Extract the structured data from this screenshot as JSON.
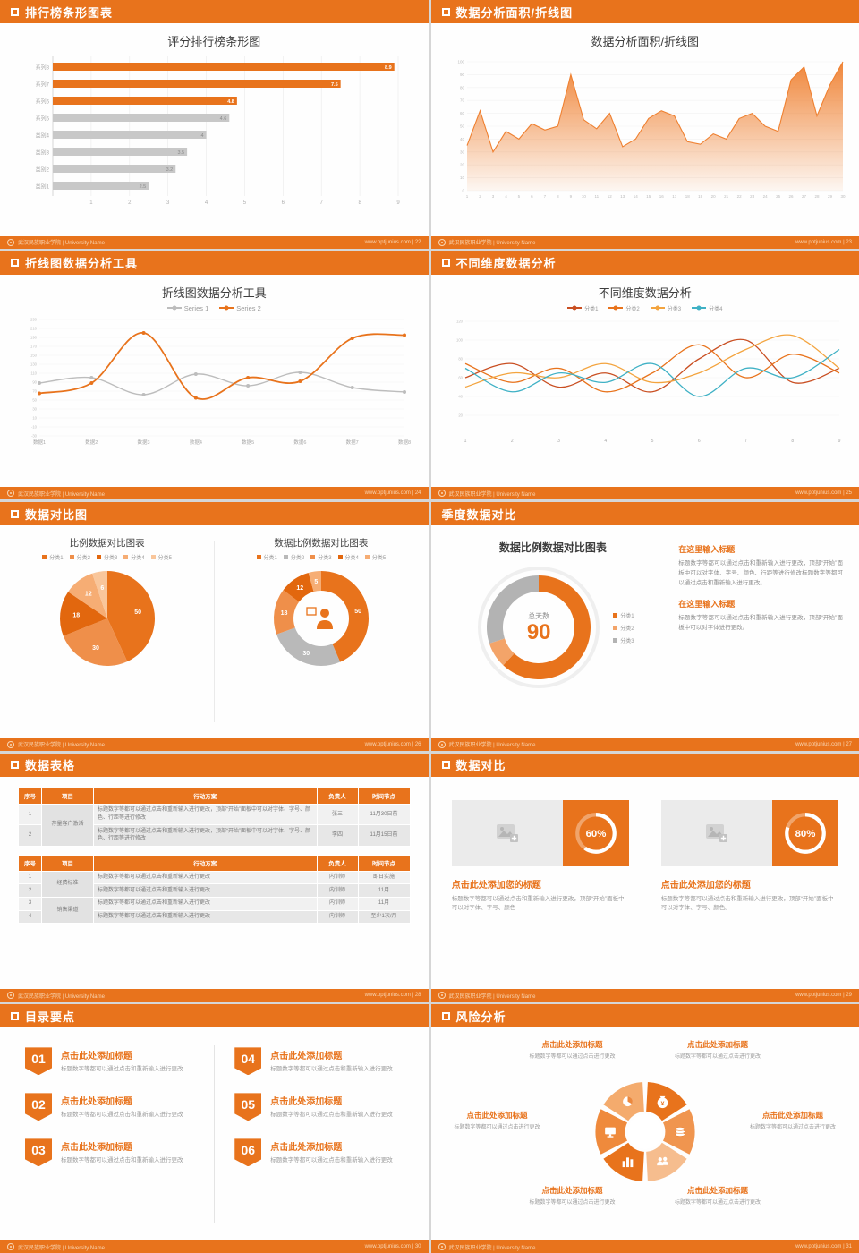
{
  "accent": "#e8731c",
  "footer": {
    "university": "武汉民族职业学院 | University Name",
    "site": "www.pptjunius.com"
  },
  "slides": {
    "s1": {
      "header": "排行榜条形图表",
      "page": "22",
      "footer_right": "www.pptjunius.com | 22",
      "title": "评分排行榜条形图",
      "chart_data": {
        "type": "bar",
        "orientation": "horizontal",
        "title": "评分排行榜条形图",
        "categories": [
          "系列8",
          "系列7",
          "系列6",
          "系列5",
          "类别4",
          "类别3",
          "类别2",
          "类别1"
        ],
        "values": [
          8.9,
          7.5,
          4.8,
          4.6,
          4,
          3.5,
          3.2,
          2.5
        ],
        "bar_colors": [
          "#e8731c",
          "#e8731c",
          "#e8731c",
          "#c8c8c8",
          "#c8c8c8",
          "#c8c8c8",
          "#c8c8c8",
          "#c8c8c8"
        ],
        "xlim": [
          0,
          9
        ],
        "xticks": [
          1,
          2,
          3,
          4,
          5,
          6,
          7,
          8,
          9
        ],
        "grid": true
      }
    },
    "s2": {
      "header": "数据分析面积/折线图",
      "page": "23",
      "footer_right": "www.pptjunius.com | 23",
      "title": "数据分析面积/折线图",
      "chart_data": {
        "type": "area",
        "title": "数据分析面积/折线图",
        "color": "#ef8030",
        "x": [
          1,
          2,
          3,
          4,
          5,
          6,
          7,
          8,
          9,
          10,
          11,
          12,
          13,
          14,
          15,
          16,
          17,
          18,
          19,
          20,
          21,
          22,
          23,
          24,
          25,
          26,
          27,
          28,
          29,
          30
        ],
        "values": [
          35,
          62,
          30,
          46,
          40,
          52,
          47,
          50,
          90,
          55,
          48,
          60,
          34,
          40,
          56,
          62,
          58,
          38,
          36,
          44,
          40,
          56,
          60,
          50,
          46,
          86,
          96,
          58,
          82,
          100
        ],
        "ylim": [
          0,
          100
        ],
        "yticks": [
          0,
          10,
          20,
          30,
          40,
          50,
          60,
          70,
          80,
          90,
          100
        ],
        "grid": true
      }
    },
    "s3": {
      "header": "折线图数据分析工具",
      "page": "24",
      "footer_right": "www.pptjunius.com | 24",
      "title": "折线图数据分析工具",
      "chart_data": {
        "type": "line",
        "title": "折线图数据分析工具",
        "x": [
          "数据1",
          "数据2",
          "数据3",
          "数据4",
          "数据5",
          "数据6",
          "数据7",
          "数据8"
        ],
        "ylim": [
          -30,
          230
        ],
        "yticks": [
          -30,
          -10,
          10,
          30,
          50,
          70,
          90,
          110,
          130,
          150,
          170,
          190,
          210,
          230
        ],
        "series": [
          {
            "name": "Series 1",
            "color": "#bdbdbd",
            "width": 1.4,
            "dots": true,
            "values": [
              88,
              100,
              62,
              108,
              82,
              112,
              78,
              68
            ]
          },
          {
            "name": "Series 2",
            "color": "#e8731c",
            "width": 1.8,
            "dots": true,
            "values": [
              65,
              88,
              200,
              55,
              100,
              92,
              188,
              195
            ]
          }
        ],
        "legend_position": "top",
        "grid": true
      }
    },
    "s4": {
      "header": "不同维度数据分析",
      "page": "25",
      "footer_right": "www.pptjunius.com | 25",
      "title": "不同维度数据分析",
      "chart_data": {
        "type": "line",
        "title": "不同维度数据分析",
        "x": [
          1,
          2,
          3,
          4,
          5,
          6,
          7,
          8,
          9
        ],
        "ylim": [
          0,
          120
        ],
        "yticks": [
          20,
          40,
          60,
          80,
          100,
          120
        ],
        "series": [
          {
            "name": "分类1",
            "color": "#c94f22",
            "width": 1.3,
            "dots": false,
            "values": [
              60,
              75,
              50,
              65,
              45,
              80,
              100,
              55,
              70
            ]
          },
          {
            "name": "分类2",
            "color": "#e8731c",
            "width": 1.3,
            "dots": false,
            "values": [
              75,
              55,
              70,
              45,
              65,
              95,
              60,
              85,
              65
            ]
          },
          {
            "name": "分类3",
            "color": "#f3a43f",
            "width": 1.3,
            "dots": false,
            "values": [
              50,
              65,
              60,
              75,
              55,
              65,
              90,
              105,
              70
            ]
          },
          {
            "name": "分类4",
            "color": "#3fb1c5",
            "width": 1.3,
            "dots": false,
            "values": [
              70,
              45,
              65,
              55,
              75,
              40,
              70,
              60,
              90
            ]
          }
        ],
        "legend_position": "top",
        "grid": true
      }
    },
    "s5": {
      "header": "数据对比图",
      "page": "26",
      "footer_right": "www.pptjunius.com | 26",
      "left": {
        "title": "比例数据对比图表",
        "chart_data": {
          "type": "pie",
          "title": "比例数据对比图表",
          "labels": [
            "分类1",
            "分类2",
            "分类3",
            "分类4",
            "分类5"
          ],
          "values": [
            50,
            30,
            18,
            12,
            6
          ],
          "colors": [
            "#e8731c",
            "#ef8f4a",
            "#e2670e",
            "#f6ad74",
            "#f9c69b"
          ]
        }
      },
      "right": {
        "title": "数据比例数据对比图表",
        "chart_data": {
          "type": "donut",
          "title": "数据比例数据对比图表",
          "labels": [
            "分类1",
            "分类2",
            "分类3",
            "分类4",
            "分类5"
          ],
          "values": [
            50,
            30,
            18,
            12,
            5
          ],
          "colors": [
            "#e8731c",
            "#b9b9b9",
            "#ef8f4a",
            "#e2670e",
            "#f6ad74"
          ]
        }
      }
    },
    "s6": {
      "header": "季度数据对比",
      "page": "27",
      "footer_right": "www.pptjunius.com | 27",
      "title": "数据比例数据对比图表",
      "chart_data": {
        "type": "donut",
        "title": "数据比例数据对比图表",
        "labels": [
          "分类1",
          "分类2",
          "分类3"
        ],
        "values": [
          62,
          8,
          30
        ],
        "colors": [
          "#e8731c",
          "#f3a469",
          "#b3b3b3"
        ],
        "center_label": "总天数",
        "center_value": "90"
      },
      "blocks": [
        {
          "heading": "在这里输入标题",
          "body": "标题数字等都可以通过点击和重新输入进行更改，顶部“开始”面板中可以对字体、字号、颜色、行距等进行修改标题数字等都可以通过点击和重新输入进行更改。"
        },
        {
          "heading": "在这里输入标题",
          "body": "标题数字等都可以通过点击和重新输入进行更改，顶部“开始”面板中可以对字体进行更改。"
        }
      ]
    },
    "s7": {
      "header": "数据表格",
      "page": "28",
      "footer_right": "www.pptjunius.com | 28",
      "table1": {
        "headers": [
          "序号",
          "项目",
          "行动方案",
          "负责人",
          "时间节点"
        ],
        "project": "存量客户激活",
        "rows": [
          {
            "no": "1",
            "action": "标题数字等都可以通过点击和重新输入进行更改，顶部“开始”面板中可以对字体、字号、颜色、行距等进行修改",
            "owner": "张三",
            "time": "11月30日前"
          },
          {
            "no": "2",
            "action": "标题数字等都可以通过点击和重新输入进行更改，顶部“开始”面板中可以对字体、字号、颜色、行距等进行修改",
            "owner": "李四",
            "time": "11月15日前"
          }
        ]
      },
      "table2": {
        "headers": [
          "序号",
          "项目",
          "行动方案",
          "负责人",
          "时间节点"
        ],
        "projects": [
          "经费标准",
          "销售渠道"
        ],
        "rows": [
          {
            "no": "1",
            "action": "标题数字等都可以通过点击和重新输入进行更改",
            "owner": "内训师",
            "time": "即日实施"
          },
          {
            "no": "2",
            "action": "标题数字等都可以通过点击和重新输入进行更改",
            "owner": "内训师",
            "time": "11月"
          },
          {
            "no": "3",
            "action": "标题数字等都可以通过点击和重新输入进行更改",
            "owner": "内训师",
            "time": "11月"
          },
          {
            "no": "4",
            "action": "标题数字等都可以通过点击和重新输入进行更改",
            "owner": "内训师",
            "time": "至少1次/月"
          }
        ]
      }
    },
    "s8": {
      "header": "数据对比",
      "page": "29",
      "footer_right": "www.pptjunius.com | 29",
      "cards": [
        {
          "value": 60,
          "percent": "60%",
          "title": "点击此处添加您的标题",
          "body": "标题数字等都可以通过点击和重新输入进行更改，顶部“开始”面板中可以对字体、字号、颜色"
        },
        {
          "value": 80,
          "percent": "80%",
          "title": "点击此处添加您的标题",
          "body": "标题数字等都可以通过点击和重新输入进行更改，顶部“开始”面板中可以对字体、字号、颜色。"
        }
      ]
    },
    "s9": {
      "header": "目录要点",
      "page": "30",
      "footer_right": "www.pptjunius.com | 30",
      "items": [
        {
          "num": "01",
          "title": "点击此处添加标题",
          "sub": "标题数字等都可以通过点击和重新输入进行更改"
        },
        {
          "num": "02",
          "title": "点击此处添加标题",
          "sub": "标题数字等都可以通过点击和重新输入进行更改"
        },
        {
          "num": "03",
          "title": "点击此处添加标题",
          "sub": "标题数字等都可以通过点击和重新输入进行更改"
        },
        {
          "num": "04",
          "title": "点击此处添加标题",
          "sub": "标题数字等都可以通过点击和重新输入进行更改"
        },
        {
          "num": "05",
          "title": "点击此处添加标题",
          "sub": "标题数字等都可以通过点击和重新输入进行更改"
        },
        {
          "num": "06",
          "title": "点击此处添加标题",
          "sub": "标题数字等都可以通过点击和重新输入进行更改"
        }
      ]
    },
    "s10": {
      "header": "风险分析",
      "page": "31",
      "footer_right": "www.pptjunius.com | 31",
      "labels": [
        {
          "title": "点击此处添加标题",
          "sub": "标题数字等都可以通过点击进行更改"
        },
        {
          "title": "点击此处添加标题",
          "sub": "标题数字等都可以通过点击进行更改"
        },
        {
          "title": "点击此处添加标题",
          "sub": "标题数字等都可以通过点击进行更改"
        },
        {
          "title": "点击此处添加标题",
          "sub": "标题数字等都可以通过点击进行更改"
        },
        {
          "title": "点击此处添加标题",
          "sub": "标题数字等都可以通过点击进行更改"
        },
        {
          "title": "点击此处添加标题",
          "sub": "标题数字等都可以通过点击进行更改"
        }
      ],
      "wheel": {
        "colors": [
          "#e8731c",
          "#f0954f",
          "#f6bd8e",
          "#e8731c",
          "#ef8a3c",
          "#f4ab6d"
        ],
        "icons": [
          "money-bag",
          "coins",
          "people",
          "bar-chart",
          "monitor",
          "pie-chart"
        ]
      }
    }
  }
}
